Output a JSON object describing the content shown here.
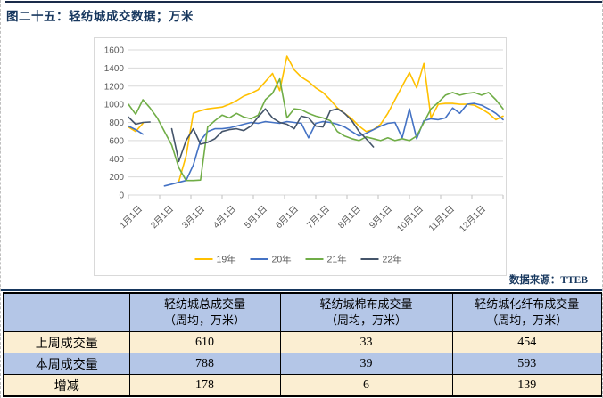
{
  "title": "图二十五：轻纺城成交数据；万米",
  "source_note": "数据来源：TTEB",
  "colors": {
    "accent_navy": "#17375E",
    "table_blue": "#B4C6E7",
    "table_cream": "#FBEED2",
    "change_red": "#FF0000",
    "gridline": "#D9D9D9",
    "axis_text": "#595959"
  },
  "chart_data": {
    "type": "line",
    "title": "",
    "xlabel": "",
    "ylabel": "",
    "ylim": [
      0,
      1600
    ],
    "y_ticks": [
      0,
      200,
      400,
      600,
      800,
      1000,
      1200,
      1400,
      1600
    ],
    "x_tick_labels": [
      "1月1日",
      "2月1日",
      "3月1日",
      "4月1日",
      "5月1日",
      "6月1日",
      "7月1日",
      "8月1日",
      "9月1日",
      "10月1日",
      "11月1日",
      "12月1日"
    ],
    "x_description": "weekly values across one year (~53 weekly points per series)",
    "grid": true,
    "legend_position": "bottom",
    "series": [
      {
        "name": "19年",
        "color": "#FFC000",
        "values": [
          750,
          700,
          790,
          null,
          null,
          null,
          null,
          150,
          430,
          900,
          930,
          950,
          960,
          970,
          1000,
          1040,
          1090,
          1120,
          1160,
          1250,
          1340,
          1150,
          1530,
          1380,
          1300,
          1250,
          1180,
          1130,
          1050,
          960,
          900,
          840,
          760,
          700,
          720,
          780,
          900,
          1050,
          1200,
          1350,
          1180,
          1450,
          850,
          1000,
          1010,
          1010,
          1000,
          1000,
          990,
          950,
          900,
          830,
          870
        ]
      },
      {
        "name": "20年",
        "color": "#4472C4",
        "values": [
          760,
          720,
          670,
          null,
          null,
          100,
          120,
          140,
          160,
          330,
          600,
          700,
          730,
          730,
          740,
          760,
          780,
          800,
          790,
          810,
          800,
          790,
          810,
          800,
          790,
          630,
          790,
          810,
          800,
          780,
          750,
          700,
          650,
          680,
          720,
          760,
          790,
          800,
          630,
          950,
          620,
          820,
          840,
          830,
          850,
          960,
          900,
          1000,
          1010,
          990,
          950,
          900,
          830
        ]
      },
      {
        "name": "21年",
        "color": "#70AD47",
        "values": [
          1000,
          890,
          1050,
          960,
          850,
          700,
          550,
          300,
          160,
          160,
          165,
          750,
          820,
          880,
          850,
          900,
          860,
          840,
          880,
          1050,
          1120,
          1280,
          850,
          950,
          940,
          900,
          870,
          850,
          820,
          700,
          650,
          620,
          600,
          640,
          620,
          600,
          630,
          600,
          620,
          600,
          650,
          800,
          950,
          1020,
          1100,
          1130,
          1100,
          1120,
          1130,
          1100,
          1130,
          1050,
          950
        ]
      },
      {
        "name": "22年",
        "color": "#44546A",
        "values": [
          860,
          780,
          800,
          805,
          null,
          null,
          730,
          370,
          600,
          730,
          560,
          580,
          620,
          700,
          720,
          730,
          710,
          760,
          860,
          950,
          850,
          800,
          780,
          730,
          870,
          850,
          760,
          750,
          930,
          950,
          900,
          820,
          700,
          620,
          530
        ]
      }
    ]
  },
  "table": {
    "columns": [
      {
        "title": "",
        "subtitle": ""
      },
      {
        "title": "轻纺城总成交量",
        "subtitle": "（周均，万米）"
      },
      {
        "title": "轻纺城棉布成交量",
        "subtitle": "（周均，万米）"
      },
      {
        "title": "轻纺城化纤布成交量",
        "subtitle": "（周均，万米）"
      }
    ],
    "rows": [
      {
        "label": "上周成交量",
        "values": [
          "610",
          "33",
          "454"
        ],
        "red": false
      },
      {
        "label": "本周成交量",
        "values": [
          "788",
          "39",
          "593"
        ],
        "red": false
      },
      {
        "label": "增减",
        "values": [
          "178",
          "6",
          "139"
        ],
        "red": true
      }
    ]
  }
}
